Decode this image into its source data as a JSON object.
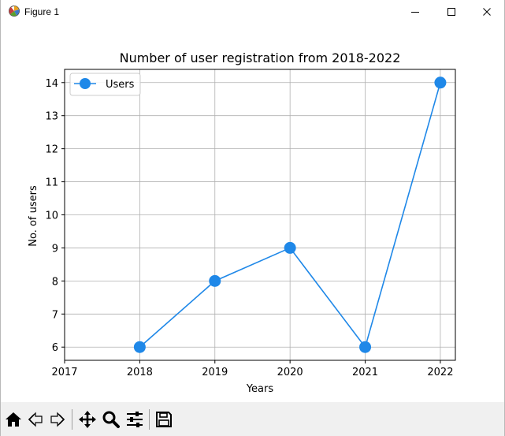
{
  "window": {
    "title": "Figure 1",
    "icon": "matplotlib-icon"
  },
  "colors": {
    "line": "#1f88e8",
    "grid": "#b0b0b0",
    "axis": "#000000",
    "toolbar_bg": "#f0f0f0"
  },
  "chart_data": {
    "type": "line",
    "title": "Number of user registration from 2018-2022",
    "xlabel": "Years",
    "ylabel": "No. of users",
    "x": [
      2018,
      2019,
      2020,
      2021,
      2022
    ],
    "series": [
      {
        "name": "Users",
        "values": [
          6,
          8,
          9,
          6,
          14
        ]
      }
    ],
    "xticks": [
      2017,
      2018,
      2019,
      2020,
      2021,
      2022
    ],
    "yticks": [
      6,
      7,
      8,
      9,
      10,
      11,
      12,
      13,
      14
    ],
    "xlim": [
      2017,
      2022.2
    ],
    "ylim": [
      5.6,
      14.4
    ],
    "grid": true,
    "legend": "top-left",
    "marker": "circle"
  },
  "toolbar": {
    "items": [
      {
        "name": "home-button",
        "icon": "home-icon"
      },
      {
        "name": "back-button",
        "icon": "back-arrow-icon"
      },
      {
        "name": "forward-button",
        "icon": "forward-arrow-icon"
      },
      {
        "name": "pan-button",
        "icon": "move-icon"
      },
      {
        "name": "zoom-button",
        "icon": "zoom-icon"
      },
      {
        "name": "configure-subplots-button",
        "icon": "sliders-icon"
      },
      {
        "name": "save-button",
        "icon": "save-icon"
      }
    ]
  }
}
